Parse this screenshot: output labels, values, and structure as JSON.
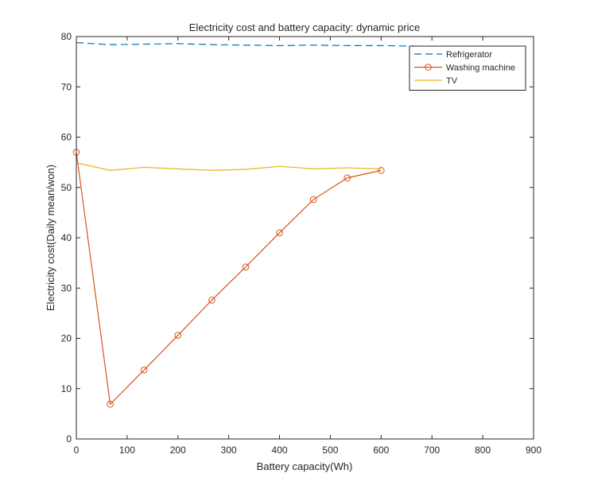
{
  "chart_data": {
    "type": "line",
    "title": "Electricity cost and battery capacity: dynamic price",
    "xlabel": "Battery capacity(Wh)",
    "ylabel": "Electricity cost(Daily mean/won)",
    "xlim": [
      0,
      900
    ],
    "ylim": [
      0,
      80
    ],
    "xticks": [
      0,
      100,
      200,
      300,
      400,
      500,
      600,
      700,
      800,
      900
    ],
    "yticks": [
      0,
      10,
      20,
      30,
      40,
      50,
      60,
      70,
      80
    ],
    "grid": false,
    "legend_position": "top-right",
    "series": [
      {
        "name": "Refrigerator",
        "color": "#0072BD",
        "line_style": "dashed",
        "marker": "none",
        "x": [
          0,
          66.7,
          133.3,
          200,
          266.7,
          333.3,
          400,
          466.7,
          533.3,
          600,
          666.7
        ],
        "y": [
          78.8,
          78.4,
          78.5,
          78.6,
          78.4,
          78.3,
          78.2,
          78.3,
          78.2,
          78.2,
          78.1
        ]
      },
      {
        "name": "Washing machine",
        "color": "#D95319",
        "line_style": "solid",
        "marker": "circle",
        "x": [
          0,
          66.7,
          133.3,
          200,
          266.7,
          333.3,
          400,
          466.7,
          533.3,
          600
        ],
        "y": [
          57.0,
          6.9,
          13.7,
          20.6,
          27.6,
          34.2,
          41.0,
          47.6,
          51.9,
          53.4
        ]
      },
      {
        "name": "TV",
        "color": "#EDB120",
        "line_style": "solid",
        "marker": "none",
        "x": [
          0,
          66.7,
          133.3,
          200,
          266.7,
          333.3,
          400,
          466.7,
          533.3,
          600
        ],
        "y": [
          54.9,
          53.4,
          54.0,
          53.7,
          53.4,
          53.6,
          54.2,
          53.7,
          53.9,
          53.7
        ]
      }
    ]
  }
}
